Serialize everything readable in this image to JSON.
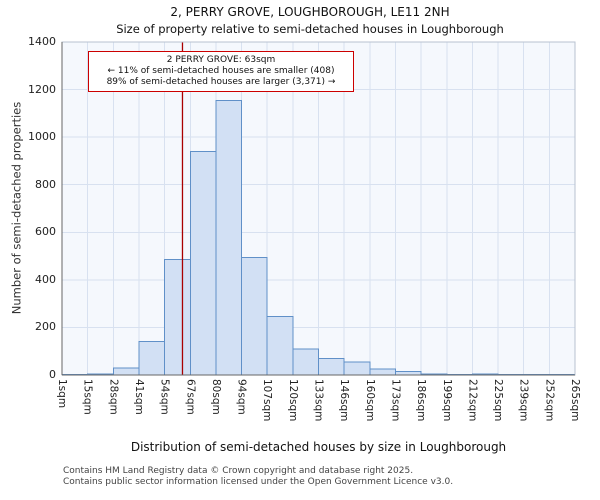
{
  "chart_data": {
    "type": "bar",
    "title": "2, PERRY GROVE, LOUGHBOROUGH, LE11 2NH",
    "subtitle": "Size of property relative to semi-detached houses in Loughborough",
    "xlabel": "Distribution of semi-detached houses by size in Loughborough",
    "ylabel": "Number of semi-detached properties",
    "x_tick_labels": [
      "1sqm",
      "15sqm",
      "28sqm",
      "41sqm",
      "54sqm",
      "67sqm",
      "80sqm",
      "94sqm",
      "107sqm",
      "120sqm",
      "133sqm",
      "146sqm",
      "160sqm",
      "173sqm",
      "186sqm",
      "199sqm",
      "212sqm",
      "225sqm",
      "239sqm",
      "252sqm",
      "265sqm"
    ],
    "bin_edges_sqm": [
      1,
      15,
      28,
      41,
      54,
      67,
      80,
      94,
      107,
      120,
      133,
      146,
      160,
      173,
      186,
      199,
      212,
      225,
      239,
      252,
      265
    ],
    "values": [
      3,
      5,
      30,
      140,
      485,
      940,
      1155,
      495,
      245,
      110,
      70,
      55,
      25,
      15,
      5,
      3,
      5,
      2,
      2,
      2
    ],
    "y_ticks": [
      0,
      200,
      400,
      600,
      800,
      1000,
      1200,
      1400
    ],
    "ylim": [
      0,
      1400
    ],
    "x_range_sqm": [
      1,
      265
    ],
    "grid": true,
    "legend": null,
    "marker": {
      "value_sqm": 63
    },
    "annotation": {
      "line1": "2 PERRY GROVE: 63sqm",
      "line2": "← 11% of semi-detached houses are smaller (408)",
      "line3": "89% of semi-detached houses are larger (3,371) →"
    },
    "colors": {
      "bar_fill": "#d2e0f4",
      "bar_stroke": "#6090c8",
      "grid": "#d8e1f0",
      "plot_bg": "#f5f8fd",
      "marker_line": "#aa0000",
      "annotation_border": "#cc0000",
      "axis": "#666666",
      "plot_border": "#b8c2d0"
    }
  },
  "footer": {
    "line1": "Contains HM Land Registry data © Crown copyright and database right 2025.",
    "line2": "Contains public sector information licensed under the Open Government Licence v3.0."
  }
}
